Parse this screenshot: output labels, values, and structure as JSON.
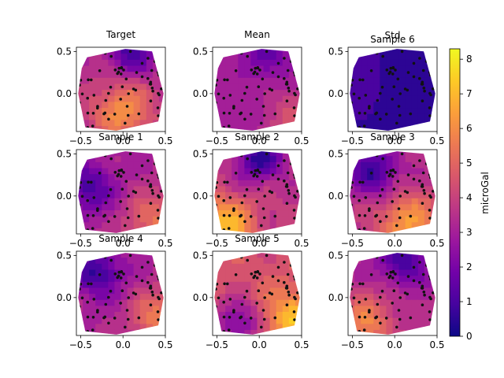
{
  "figure": {
    "type": "contour-grid",
    "colorbar": {
      "label": "microGal",
      "ticks": [
        "0",
        "1",
        "2",
        "3",
        "4",
        "5",
        "6",
        "7",
        "8"
      ],
      "range": [
        0,
        8.3
      ],
      "colormap": [
        "#0d0887",
        "#46039f",
        "#7201a8",
        "#9c179e",
        "#bd3786",
        "#d8576b",
        "#ed7953",
        "#fb9f3a",
        "#fdca26",
        "#f0f921"
      ]
    }
  },
  "chart_data": [
    {
      "type": "contour",
      "title": "Target",
      "xticks": [
        "−0.5",
        "0.0",
        "0.5"
      ],
      "yticks": [
        "0.5",
        "0.0"
      ],
      "xlim": [
        -0.55,
        0.5
      ],
      "ylim": [
        -0.45,
        0.55
      ],
      "field_level": 3.5,
      "field_variation": 2.6,
      "low_spot": [
        0.1,
        0.5
      ],
      "high_spot": [
        0.0,
        -0.2
      ]
    },
    {
      "type": "contour",
      "title": "Mean",
      "xticks": [
        "−0.5",
        "0.0",
        "0.5"
      ],
      "yticks": [
        "0.5",
        "0.0"
      ],
      "xlim": [
        -0.55,
        0.5
      ],
      "ylim": [
        -0.45,
        0.55
      ],
      "field_level": 3.0,
      "field_variation": 1.4,
      "low_spot": [
        0.1,
        0.5
      ],
      "high_spot": [
        0.4,
        -0.3
      ]
    },
    {
      "type": "contour",
      "title": "Sample 6",
      "extra_title": "Std",
      "xticks": [
        "−0.5",
        "0.0",
        "0.5"
      ],
      "yticks": [
        "0.5",
        "0.0"
      ],
      "xlim": [
        -0.55,
        0.5
      ],
      "ylim": [
        -0.45,
        0.55
      ],
      "field_level": 0.7,
      "field_variation": 0.4,
      "low_spot": [
        0.0,
        0.3
      ],
      "high_spot": [
        -0.4,
        0.3
      ]
    },
    {
      "type": "contour",
      "title": "Sample 1",
      "xticks": [
        "−0.5",
        "0.0",
        "0.5"
      ],
      "yticks": [
        "0.5",
        "0.0"
      ],
      "xlim": [
        -0.55,
        0.5
      ],
      "ylim": [
        -0.45,
        0.55
      ],
      "field_level": 3.2,
      "field_variation": 2.2,
      "low_spot": [
        -0.4,
        0.1
      ],
      "high_spot": [
        0.4,
        -0.3
      ]
    },
    {
      "type": "contour",
      "title": "Sample 2",
      "xticks": [
        "−0.5",
        "0.0",
        "0.5"
      ],
      "yticks": [
        "0.5",
        "0.0"
      ],
      "xlim": [
        -0.55,
        0.5
      ],
      "ylim": [
        -0.45,
        0.55
      ],
      "field_level": 3.8,
      "field_variation": 3.2,
      "low_spot": [
        0.0,
        0.45
      ],
      "high_spot": [
        -0.4,
        -0.35
      ]
    },
    {
      "type": "contour",
      "title": "Sample 3",
      "xticks": [
        "−0.5",
        "0.0",
        "0.5"
      ],
      "yticks": [
        "0.5",
        "0.0"
      ],
      "xlim": [
        -0.55,
        0.5
      ],
      "ylim": [
        -0.45,
        0.55
      ],
      "field_level": 3.5,
      "field_variation": 2.8,
      "low_spot": [
        -0.25,
        0.3
      ],
      "high_spot": [
        0.15,
        -0.3
      ]
    },
    {
      "type": "contour",
      "title": "Sample 4",
      "xticks": [
        "−0.5",
        "0.0",
        "0.5"
      ],
      "yticks": [
        "0.5",
        "0.0"
      ],
      "xlim": [
        -0.55,
        0.5
      ],
      "ylim": [
        -0.45,
        0.55
      ],
      "field_level": 3.2,
      "field_variation": 2.5,
      "low_spot": [
        -0.3,
        0.3
      ],
      "high_spot": [
        0.45,
        -0.25
      ]
    },
    {
      "type": "contour",
      "title": "Sample 5",
      "xticks": [
        "−0.5",
        "0.0",
        "0.5"
      ],
      "yticks": [
        "0.5",
        "0.0"
      ],
      "xlim": [
        -0.55,
        0.5
      ],
      "ylim": [
        -0.45,
        0.55
      ],
      "field_level": 4.5,
      "field_variation": 2.6,
      "low_spot": [
        -0.25,
        -0.3
      ],
      "high_spot": [
        0.4,
        -0.25
      ]
    },
    {
      "type": "contour",
      "title": "",
      "xticks": [
        "−0.5",
        "0.0",
        "0.5"
      ],
      "yticks": [
        "0.5",
        "0.0"
      ],
      "xlim": [
        -0.55,
        0.5
      ],
      "ylim": [
        -0.45,
        0.55
      ],
      "field_level": 3.3,
      "field_variation": 2.4,
      "low_spot": [
        0.1,
        0.45
      ],
      "high_spot": [
        -0.35,
        -0.3
      ]
    }
  ]
}
